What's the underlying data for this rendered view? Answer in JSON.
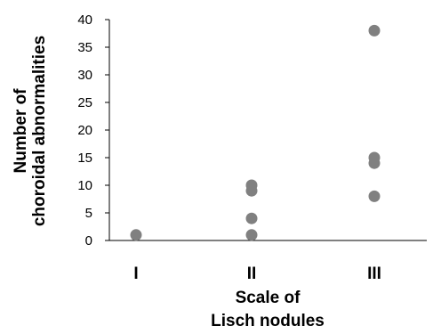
{
  "chart_data": {
    "type": "scatter",
    "title": "",
    "xlabel": [
      "Scale of",
      "Lisch nodules"
    ],
    "ylabel": [
      "Number of",
      "choroidal abnormalities"
    ],
    "categories": [
      "I",
      "II",
      "III"
    ],
    "ylim": [
      0,
      40
    ],
    "yticks": [
      0,
      5,
      10,
      15,
      20,
      25,
      30,
      35,
      40
    ],
    "grid": false,
    "legend": "none",
    "marker_color": "#808080",
    "points": [
      {
        "x": "I",
        "y": 1
      },
      {
        "x": "II",
        "y": 1
      },
      {
        "x": "II",
        "y": 4
      },
      {
        "x": "II",
        "y": 9
      },
      {
        "x": "II",
        "y": 10
      },
      {
        "x": "III",
        "y": 8
      },
      {
        "x": "III",
        "y": 14
      },
      {
        "x": "III",
        "y": 15
      },
      {
        "x": "III",
        "y": 38
      }
    ]
  }
}
